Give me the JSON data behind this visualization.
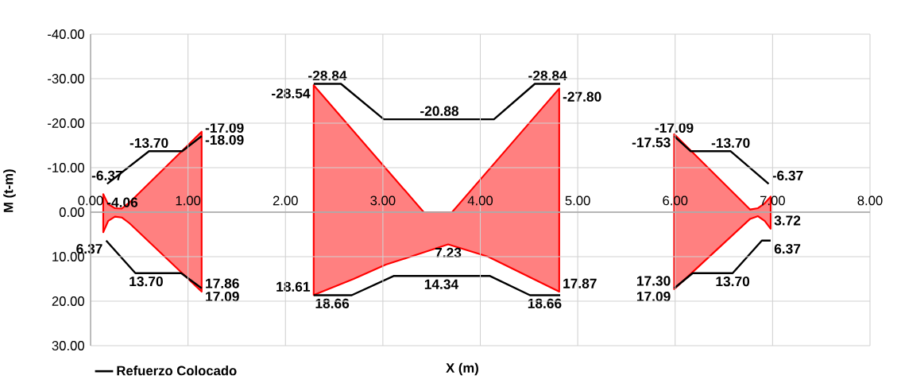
{
  "chart_data": {
    "type": "area",
    "xlabel": "X (m)",
    "ylabel": "M (t-m)",
    "xlim": [
      0,
      8
    ],
    "ylim": [
      30,
      -40
    ],
    "xticks": [
      {
        "value": 0,
        "label": "0.00"
      },
      {
        "value": 1,
        "label": "1.00"
      },
      {
        "value": 2,
        "label": "2.00"
      },
      {
        "value": 3,
        "label": "3.00"
      },
      {
        "value": 4,
        "label": "4.00"
      },
      {
        "value": 5,
        "label": "5.00"
      },
      {
        "value": 6,
        "label": "6.00"
      },
      {
        "value": 7,
        "label": "7.00"
      },
      {
        "value": 8,
        "label": "8.00"
      }
    ],
    "yticks": [
      {
        "value": -40,
        "label": "-40.00"
      },
      {
        "value": -30,
        "label": "-30.00"
      },
      {
        "value": -20,
        "label": "-20.00"
      },
      {
        "value": -10,
        "label": "-10.00"
      },
      {
        "value": 0,
        "label": "0.00"
      },
      {
        "value": 10,
        "label": "10.00"
      },
      {
        "value": 20,
        "label": "20.00"
      },
      {
        "value": 30,
        "label": "30.00"
      }
    ],
    "grid": true,
    "legend": "bottom left",
    "marker": "none",
    "series": [
      {
        "color": "#ff0000",
        "x": [
          0.13,
          0.18,
          0.25,
          0.32,
          0.4,
          1.14,
          1.7,
          2.29,
          3.42,
          3.71,
          4.81,
          5.4,
          5.99,
          6.77,
          6.85,
          6.92,
          6.98
        ],
        "values": [
          -4.06,
          -1.8,
          -0.9,
          -0.8,
          -2.2,
          -18.09,
          null,
          -28.54,
          0,
          0,
          -27.8,
          null,
          -17.53,
          -0.6,
          -0.9,
          -2.0,
          -3.5
        ],
        "value_labels": [
          "-4.06",
          null,
          null,
          null,
          null,
          "-18.09",
          null,
          "-28.54",
          null,
          null,
          "-27.80",
          null,
          "-17.53",
          null,
          null,
          null,
          null
        ]
      },
      {
        "color": "#ff0000",
        "x": [
          0.13,
          0.18,
          0.25,
          0.32,
          0.4,
          1.14,
          1.7,
          2.29,
          2.7,
          3.03,
          3.67,
          4.08,
          4.81,
          5.4,
          5.99,
          6.77,
          6.85,
          6.92,
          6.98
        ],
        "values": [
          4.5,
          2.0,
          1.0,
          1.2,
          2.5,
          17.86,
          null,
          18.61,
          15.0,
          11.8,
          7.23,
          10.0,
          17.87,
          null,
          17.3,
          1.5,
          0.9,
          2.0,
          3.72
        ],
        "value_labels": [
          null,
          null,
          null,
          null,
          null,
          "17.86",
          null,
          "18.61",
          null,
          null,
          "7.23",
          null,
          "17.87",
          null,
          "17.30",
          null,
          null,
          null,
          "3.72"
        ]
      },
      {
        "type": "line",
        "name": "Refuerzo Colocado",
        "color": "#000000",
        "x": [
          0.17,
          0.6,
          0.94,
          1.14,
          0.5,
          0.16,
          0.46,
          0.57,
          0.93,
          1.14,
          1.7,
          2.29,
          2.43,
          2.57,
          3.01,
          3.58,
          4.14,
          4.56,
          4.69,
          4.82,
          3.5,
          2.29,
          2.48,
          2.68,
          3.11,
          3.6,
          4.1,
          4.51,
          4.66,
          4.82,
          5.4,
          5.99,
          6.16,
          6.57,
          6.96,
          6.5,
          5.99,
          6.18,
          6.59,
          6.89,
          6.98
        ],
        "values": [
          -6.37,
          -13.7,
          -13.7,
          -17.09,
          null,
          6.37,
          13.7,
          13.7,
          13.7,
          17.09,
          null,
          -28.84,
          -28.84,
          -28.84,
          -20.88,
          -20.88,
          -20.88,
          -28.84,
          -28.84,
          -28.84,
          null,
          18.66,
          18.66,
          18.66,
          14.34,
          14.34,
          14.34,
          18.66,
          18.66,
          18.66,
          null,
          -17.09,
          -13.7,
          -13.7,
          -6.37,
          null,
          17.09,
          13.7,
          13.7,
          6.37,
          6.37
        ],
        "value_labels": [
          "-6.37",
          "-13.70",
          null,
          "-17.09",
          null,
          "6.37",
          null,
          "13.70",
          null,
          "17.09",
          null,
          null,
          "-28.84",
          null,
          null,
          "-20.88",
          null,
          null,
          "-28.84",
          null,
          null,
          null,
          "18.66",
          null,
          null,
          "14.34",
          null,
          null,
          "18.66",
          null,
          null,
          "-17.09",
          null,
          "-13.70",
          "-6.37",
          null,
          "17.09",
          null,
          "13.70",
          null,
          "6.37"
        ]
      }
    ]
  }
}
